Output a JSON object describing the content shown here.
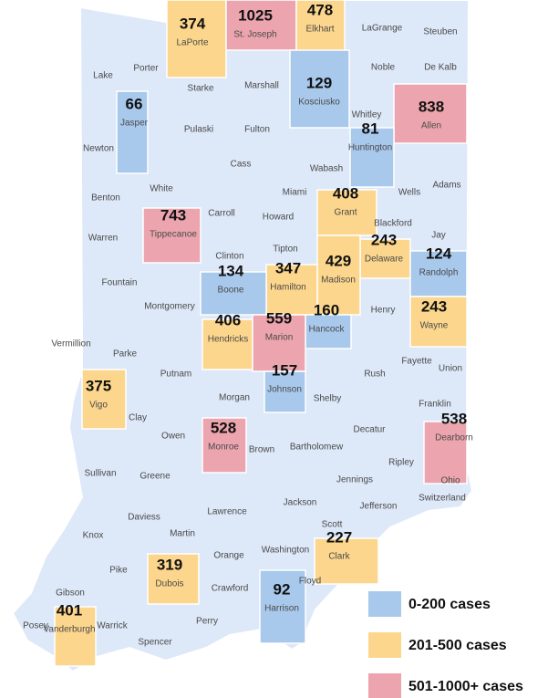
{
  "counties": [
    {
      "name": "LaPorte",
      "cases": 374,
      "color": "#fcd68c"
    },
    {
      "name": "St. Joseph",
      "cases": 1025,
      "color": "#eca5ae"
    },
    {
      "name": "Elkhart",
      "cases": 478,
      "color": "#fcd68c"
    },
    {
      "name": "LaGrange"
    },
    {
      "name": "Steuben"
    },
    {
      "name": "Lake"
    },
    {
      "name": "Porter"
    },
    {
      "name": "Noble"
    },
    {
      "name": "De Kalb"
    },
    {
      "name": "Starke"
    },
    {
      "name": "Marshall"
    },
    {
      "name": "Kosciusko",
      "cases": 129,
      "color": "#a8c8ec"
    },
    {
      "name": "Jasper",
      "cases": 66,
      "color": "#a8c8ec"
    },
    {
      "name": "Whitley"
    },
    {
      "name": "Allen",
      "cases": 838,
      "color": "#eca5ae"
    },
    {
      "name": "Pulaski"
    },
    {
      "name": "Fulton"
    },
    {
      "name": "Huntington",
      "cases": 81,
      "color": "#a8c8ec"
    },
    {
      "name": "Newton"
    },
    {
      "name": "Cass"
    },
    {
      "name": "Wabash"
    },
    {
      "name": "Wells"
    },
    {
      "name": "Adams"
    },
    {
      "name": "Benton"
    },
    {
      "name": "White"
    },
    {
      "name": "Miami"
    },
    {
      "name": "Grant",
      "cases": 408,
      "color": "#fcd68c"
    },
    {
      "name": "Blackford"
    },
    {
      "name": "Carroll"
    },
    {
      "name": "Howard"
    },
    {
      "name": "Tippecanoe",
      "cases": 743,
      "color": "#eca5ae"
    },
    {
      "name": "Jay"
    },
    {
      "name": "Warren"
    },
    {
      "name": "Tipton"
    },
    {
      "name": "Clinton"
    },
    {
      "name": "Delaware",
      "cases": 243,
      "color": "#fcd68c"
    },
    {
      "name": "Madison",
      "cases": 429,
      "color": "#fcd68c"
    },
    {
      "name": "Randolph",
      "cases": 124,
      "color": "#a8c8ec"
    },
    {
      "name": "Fountain"
    },
    {
      "name": "Hamilton",
      "cases": 347,
      "color": "#fcd68c"
    },
    {
      "name": "Boone",
      "cases": 134,
      "color": "#a8c8ec"
    },
    {
      "name": "Montgomery"
    },
    {
      "name": "Henry"
    },
    {
      "name": "Hancock",
      "cases": 160,
      "color": "#a8c8ec"
    },
    {
      "name": "Wayne",
      "cases": 243,
      "color": "#fcd68c"
    },
    {
      "name": "Vermillion"
    },
    {
      "name": "Parke"
    },
    {
      "name": "Hendricks",
      "cases": 406,
      "color": "#fcd68c"
    },
    {
      "name": "Marion",
      "cases": 559,
      "color": "#eca5ae"
    },
    {
      "name": "Fayette"
    },
    {
      "name": "Union"
    },
    {
      "name": "Putnam"
    },
    {
      "name": "Rush"
    },
    {
      "name": "Johnson",
      "cases": 157,
      "color": "#a8c8ec"
    },
    {
      "name": "Vigo",
      "cases": 375,
      "color": "#fcd68c"
    },
    {
      "name": "Morgan"
    },
    {
      "name": "Shelby"
    },
    {
      "name": "Clay"
    },
    {
      "name": "Franklin"
    },
    {
      "name": "Owen"
    },
    {
      "name": "Decatur"
    },
    {
      "name": "Monroe",
      "cases": 528,
      "color": "#eca5ae"
    },
    {
      "name": "Brown"
    },
    {
      "name": "Bartholomew"
    },
    {
      "name": "Dearborn",
      "cases": 538,
      "color": "#eca5ae"
    },
    {
      "name": "Sullivan"
    },
    {
      "name": "Greene"
    },
    {
      "name": "Ripley"
    },
    {
      "name": "Jennings"
    },
    {
      "name": "Ohio"
    },
    {
      "name": "Lawrence"
    },
    {
      "name": "Jackson"
    },
    {
      "name": "Switzerland"
    },
    {
      "name": "Jefferson"
    },
    {
      "name": "Daviess"
    },
    {
      "name": "Knox"
    },
    {
      "name": "Martin"
    },
    {
      "name": "Scott"
    },
    {
      "name": "Clark",
      "cases": 227,
      "color": "#fcd68c"
    },
    {
      "name": "Orange"
    },
    {
      "name": "Washington"
    },
    {
      "name": "Pike"
    },
    {
      "name": "Dubois",
      "cases": 319,
      "color": "#fcd68c"
    },
    {
      "name": "Floyd"
    },
    {
      "name": "Crawford"
    },
    {
      "name": "Gibson"
    },
    {
      "name": "Harrison",
      "cases": 92,
      "color": "#a8c8ec"
    },
    {
      "name": "Posey"
    },
    {
      "name": "Vanderburgh",
      "cases": 401,
      "color": "#fcd68c"
    },
    {
      "name": "Warrick"
    },
    {
      "name": "Perry"
    },
    {
      "name": "Spencer"
    }
  ],
  "legend": [
    {
      "label": "0-200 cases",
      "color": "#a8c8ec"
    },
    {
      "label": "201-500 cases",
      "color": "#fcd68c"
    },
    {
      "label": "501-1000+ cases",
      "color": "#eca5ae"
    }
  ]
}
